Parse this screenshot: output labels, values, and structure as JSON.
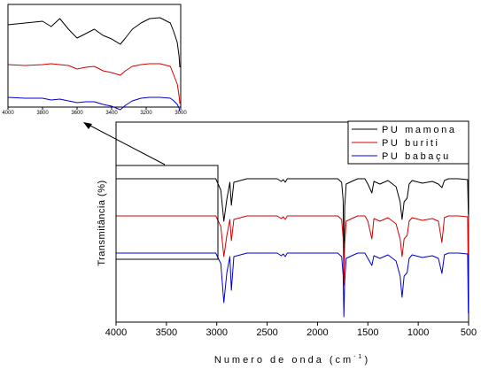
{
  "chart_data": [
    {
      "type": "line",
      "xlabel": "Numero de onda (cm",
      "xlabel_sup": "-1",
      "xlabel_close": ")",
      "ylabel": "Transmitância (%)",
      "xlim": [
        4000,
        500
      ],
      "x_reversed": true,
      "y_axis_tick_labels": false,
      "x_ticks": [
        4000,
        3500,
        3000,
        2500,
        2000,
        1500,
        1000,
        500
      ],
      "x_tick_labels": [
        "4000",
        "3500",
        "3000",
        "2500",
        "2000",
        "1500",
        "1000",
        "500"
      ],
      "legend_position": "top-right",
      "series": [
        {
          "name": "PU mamona",
          "color": "#000000",
          "offset": 0,
          "points": [
            [
              4000,
              2
            ],
            [
              3600,
              2
            ],
            [
              3100,
              2
            ],
            [
              3010,
              2
            ],
            [
              2960,
              15
            ],
            [
              2930,
              50
            ],
            [
              2900,
              25
            ],
            [
              2870,
              6
            ],
            [
              2855,
              32
            ],
            [
              2830,
              6
            ],
            [
              2700,
              2
            ],
            [
              2400,
              2
            ],
            [
              2360,
              5
            ],
            [
              2340,
              3
            ],
            [
              2320,
              6
            ],
            [
              2300,
              2
            ],
            [
              1800,
              2
            ],
            [
              1760,
              6
            ],
            [
              1745,
              27
            ],
            [
              1738,
              110
            ],
            [
              1730,
              34
            ],
            [
              1715,
              8
            ],
            [
              1660,
              5
            ],
            [
              1600,
              2
            ],
            [
              1530,
              2
            ],
            [
              1500,
              8
            ],
            [
              1460,
              18
            ],
            [
              1440,
              5
            ],
            [
              1380,
              8
            ],
            [
              1300,
              4
            ],
            [
              1220,
              11
            ],
            [
              1180,
              28
            ],
            [
              1160,
              48
            ],
            [
              1140,
              28
            ],
            [
              1110,
              24
            ],
            [
              1090,
              8
            ],
            [
              1060,
              4
            ],
            [
              960,
              7
            ],
            [
              860,
              5
            ],
            [
              800,
              8
            ],
            [
              765,
              12
            ],
            [
              740,
              4
            ],
            [
              700,
              2
            ],
            [
              600,
              2
            ],
            [
              510,
              3
            ],
            [
              503,
              42
            ],
            [
              500,
              3
            ]
          ]
        },
        {
          "name": "PU buriti",
          "color": "#d40000",
          "offset": 42,
          "points": [
            [
              4000,
              2
            ],
            [
              3600,
              2
            ],
            [
              3100,
              2
            ],
            [
              3010,
              2
            ],
            [
              2960,
              14
            ],
            [
              2930,
              48
            ],
            [
              2900,
              24
            ],
            [
              2870,
              6
            ],
            [
              2855,
              30
            ],
            [
              2830,
              6
            ],
            [
              2700,
              2
            ],
            [
              2400,
              2
            ],
            [
              2360,
              5
            ],
            [
              2340,
              3
            ],
            [
              2320,
              6
            ],
            [
              2300,
              2
            ],
            [
              1800,
              2
            ],
            [
              1760,
              6
            ],
            [
              1745,
              27
            ],
            [
              1738,
              80
            ],
            [
              1730,
              34
            ],
            [
              1715,
              8
            ],
            [
              1660,
              5
            ],
            [
              1600,
              2
            ],
            [
              1530,
              2
            ],
            [
              1500,
              8
            ],
            [
              1460,
              28
            ],
            [
              1440,
              5
            ],
            [
              1380,
              8
            ],
            [
              1300,
              4
            ],
            [
              1220,
              11
            ],
            [
              1180,
              28
            ],
            [
              1160,
              48
            ],
            [
              1140,
              28
            ],
            [
              1110,
              24
            ],
            [
              1090,
              8
            ],
            [
              1060,
              4
            ],
            [
              960,
              7
            ],
            [
              860,
              5
            ],
            [
              800,
              8
            ],
            [
              765,
              32
            ],
            [
              740,
              4
            ],
            [
              700,
              2
            ],
            [
              600,
              2
            ],
            [
              510,
              3
            ],
            [
              503,
              90
            ],
            [
              500,
              3
            ]
          ]
        },
        {
          "name": "PU babaçu",
          "color": "#0000cc",
          "offset": 84,
          "points": [
            [
              4000,
              2
            ],
            [
              3600,
              2
            ],
            [
              3100,
              2
            ],
            [
              3010,
              2
            ],
            [
              2960,
              14
            ],
            [
              2930,
              58
            ],
            [
              2900,
              24
            ],
            [
              2870,
              6
            ],
            [
              2855,
              44
            ],
            [
              2830,
              6
            ],
            [
              2700,
              2
            ],
            [
              2400,
              2
            ],
            [
              2360,
              5
            ],
            [
              2340,
              3
            ],
            [
              2320,
              6
            ],
            [
              2300,
              2
            ],
            [
              1800,
              2
            ],
            [
              1760,
              6
            ],
            [
              1745,
              27
            ],
            [
              1738,
              74
            ],
            [
              1730,
              34
            ],
            [
              1715,
              8
            ],
            [
              1660,
              5
            ],
            [
              1600,
              2
            ],
            [
              1530,
              2
            ],
            [
              1500,
              8
            ],
            [
              1460,
              16
            ],
            [
              1440,
              5
            ],
            [
              1380,
              8
            ],
            [
              1300,
              4
            ],
            [
              1220,
              11
            ],
            [
              1180,
              28
            ],
            [
              1160,
              52
            ],
            [
              1140,
              28
            ],
            [
              1110,
              24
            ],
            [
              1090,
              8
            ],
            [
              1060,
              4
            ],
            [
              960,
              7
            ],
            [
              860,
              5
            ],
            [
              800,
              8
            ],
            [
              765,
              25
            ],
            [
              740,
              4
            ],
            [
              700,
              2
            ],
            [
              600,
              2
            ],
            [
              510,
              3
            ],
            [
              503,
              70
            ],
            [
              500,
              3
            ]
          ]
        }
      ]
    },
    {
      "type": "line",
      "role": "inset (zoom of 4000–3000 cm-1 region)",
      "xlim": [
        4000,
        3000
      ],
      "x_reversed": true,
      "x_ticks": [
        4000,
        3800,
        3600,
        3400,
        3200,
        3000
      ],
      "x_tick_labels": [
        "4000",
        "3800",
        "3600",
        "3400",
        "3200",
        "3000"
      ],
      "series": [
        {
          "color": "#000000",
          "offset": 0,
          "points": [
            [
              4000,
              10
            ],
            [
              3900,
              8
            ],
            [
              3800,
              6
            ],
            [
              3750,
              12
            ],
            [
              3700,
              3
            ],
            [
              3650,
              15
            ],
            [
              3600,
              25
            ],
            [
              3550,
              20
            ],
            [
              3500,
              15
            ],
            [
              3450,
              22
            ],
            [
              3400,
              26
            ],
            [
              3350,
              32
            ],
            [
              3320,
              25
            ],
            [
              3280,
              15
            ],
            [
              3230,
              8
            ],
            [
              3180,
              3
            ],
            [
              3120,
              2
            ],
            [
              3060,
              8
            ],
            [
              3040,
              18
            ],
            [
              3020,
              30
            ],
            [
              3010,
              45
            ],
            [
              3005,
              58
            ]
          ]
        },
        {
          "color": "#d40000",
          "offset": 42,
          "points": [
            [
              4000,
              13
            ],
            [
              3900,
              14
            ],
            [
              3800,
              13
            ],
            [
              3750,
              12
            ],
            [
              3700,
              13
            ],
            [
              3650,
              14
            ],
            [
              3600,
              18
            ],
            [
              3550,
              16
            ],
            [
              3500,
              15
            ],
            [
              3450,
              20
            ],
            [
              3400,
              22
            ],
            [
              3350,
              25
            ],
            [
              3320,
              20
            ],
            [
              3280,
              15
            ],
            [
              3230,
              13
            ],
            [
              3180,
              12
            ],
            [
              3120,
              12
            ],
            [
              3060,
              15
            ],
            [
              3040,
              25
            ],
            [
              3020,
              35
            ],
            [
              3010,
              48
            ],
            [
              3005,
              57
            ]
          ]
        },
        {
          "color": "#0000cc",
          "offset": 84,
          "points": [
            [
              4000,
              8
            ],
            [
              3900,
              9
            ],
            [
              3800,
              9
            ],
            [
              3750,
              11
            ],
            [
              3700,
              10
            ],
            [
              3650,
              12
            ],
            [
              3600,
              14
            ],
            [
              3550,
              13
            ],
            [
              3500,
              13
            ],
            [
              3450,
              16
            ],
            [
              3400,
              18
            ],
            [
              3350,
              22
            ],
            [
              3320,
              17
            ],
            [
              3280,
              12
            ],
            [
              3230,
              9
            ],
            [
              3180,
              8
            ],
            [
              3120,
              8
            ],
            [
              3060,
              9
            ],
            [
              3040,
              12
            ],
            [
              3020,
              16
            ],
            [
              3010,
              20
            ],
            [
              3005,
              24
            ]
          ]
        }
      ]
    }
  ]
}
